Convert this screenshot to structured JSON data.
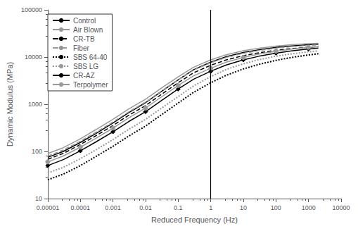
{
  "chart_data": {
    "type": "line",
    "xlabel": "Reduced Frequency (Hz)",
    "ylabel": "Dynamic Modulus (MPa)",
    "log": true,
    "grid": false,
    "legend": "upper left",
    "xlim": [
      1e-05,
      10000
    ],
    "ylim": [
      10,
      100000
    ],
    "xticks": [
      1e-05,
      0.0001,
      0.001,
      0.01,
      0.1,
      1,
      10,
      100,
      1000,
      10000
    ],
    "yticks": [
      10,
      100,
      1000,
      10000,
      100000
    ],
    "vline_x": 1,
    "x": [
      1e-05,
      3e-05,
      0.0001,
      0.0003,
      0.001,
      0.003,
      0.01,
      0.03,
      0.1,
      0.3,
      1,
      3,
      10,
      30,
      100,
      300,
      1000,
      2000
    ],
    "series": [
      {
        "name": "Control",
        "color": "#000000",
        "line_style": "solid",
        "marker": "none",
        "values": [
          75,
          100,
          155,
          240,
          400,
          660,
          1080,
          1850,
          3300,
          5400,
          7800,
          10200,
          12500,
          14200,
          16000,
          17200,
          18200,
          18700
        ]
      },
      {
        "name": "Air Blown",
        "color": "#999999",
        "line_style": "solid",
        "marker": "none",
        "values": [
          90,
          120,
          185,
          290,
          480,
          790,
          1280,
          2180,
          3800,
          6100,
          8700,
          11200,
          13600,
          15400,
          17100,
          18300,
          19200,
          19600
        ]
      },
      {
        "name": "CR-TB",
        "color": "#000000",
        "line_style": "dashed",
        "marker": "none",
        "values": [
          68,
          91,
          140,
          215,
          355,
          580,
          940,
          1600,
          2850,
          4650,
          6700,
          8700,
          10700,
          12300,
          13900,
          15100,
          16100,
          16600
        ]
      },
      {
        "name": "Fiber",
        "color": "#999999",
        "line_style": "dashed",
        "marker": "none",
        "values": [
          80,
          107,
          165,
          255,
          420,
          685,
          1110,
          1880,
          3300,
          5300,
          7600,
          9800,
          12000,
          13700,
          15400,
          16600,
          17600,
          18100
        ]
      },
      {
        "name": "SBS 64-40",
        "color": "#000000",
        "line_style": "dotted",
        "marker": "none",
        "values": [
          25,
          33,
          50,
          78,
          128,
          210,
          345,
          590,
          1060,
          1800,
          2850,
          4100,
          5600,
          7000,
          8500,
          9800,
          11100,
          11800
        ]
      },
      {
        "name": "SBS LG",
        "color": "#999999",
        "line_style": "dotted",
        "marker": "none",
        "values": [
          35,
          46,
          70,
          108,
          178,
          292,
          478,
          815,
          1450,
          2450,
          3850,
          5450,
          7200,
          8800,
          10400,
          11700,
          12900,
          13500
        ]
      },
      {
        "name": "CR-AZ",
        "color": "#000000",
        "line_style": "solid",
        "marker": "diamond",
        "values": [
          50,
          67,
          103,
          159,
          261,
          427,
          695,
          1180,
          2100,
          3400,
          5000,
          6800,
          8700,
          10400,
          12100,
          13500,
          14800,
          15500
        ]
      },
      {
        "name": "Terpolymer",
        "color": "#999999",
        "line_style": "solid",
        "marker": "circle",
        "values": [
          60,
          80,
          123,
          190,
          311,
          510,
          830,
          1410,
          2500,
          4000,
          5800,
          7800,
          9800,
          11600,
          13300,
          14700,
          16000,
          16600
        ]
      }
    ]
  }
}
